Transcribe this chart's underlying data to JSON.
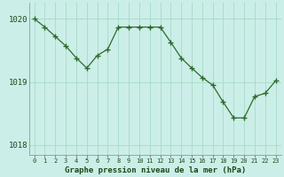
{
  "x": [
    0,
    1,
    2,
    3,
    4,
    5,
    6,
    7,
    8,
    9,
    10,
    11,
    12,
    13,
    14,
    15,
    16,
    17,
    18,
    19,
    20,
    21,
    22,
    23
  ],
  "y": [
    1020.0,
    1019.87,
    1019.72,
    1019.57,
    1019.38,
    1019.22,
    1019.42,
    1019.52,
    1019.87,
    1019.87,
    1019.87,
    1019.87,
    1019.87,
    1019.63,
    1019.38,
    1019.22,
    1019.07,
    1018.95,
    1018.68,
    1018.43,
    1018.43,
    1018.77,
    1018.82,
    1019.02
  ],
  "line_color": "#2d6b2d",
  "marker_color": "#2d6b2d",
  "bg_color": "#cceee8",
  "grid_color": "#aaddcc",
  "xlabel": "Graphe pression niveau de la mer (hPa)",
  "xlabel_color": "#1a4a1a",
  "tick_color": "#1a4a1a",
  "yticks": [
    1018,
    1019,
    1020
  ],
  "ylim": [
    1017.85,
    1020.25
  ],
  "xlim": [
    -0.5,
    23.5
  ],
  "font_family": "monospace"
}
